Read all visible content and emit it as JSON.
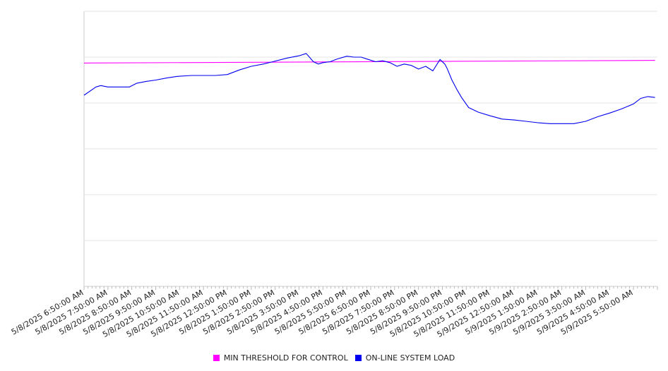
{
  "chart_data": {
    "type": "line",
    "x_tick_labels": [
      "5/8/2025 6:50:00 AM",
      "5/8/2025 7:50:00 AM",
      "5/8/2025 8:50:00 AM",
      "5/8/2025 9:50:00 AM",
      "5/8/2025 10:50:00 AM",
      "5/8/2025 11:50:00 AM",
      "5/8/2025 12:50:00 PM",
      "5/8/2025 1:50:00 PM",
      "5/8/2025 2:50:00 PM",
      "5/8/2025 3:50:00 PM",
      "5/8/2025 4:50:00 PM",
      "5/8/2025 5:50:00 PM",
      "5/8/2025 6:50:00 PM",
      "5/8/2025 7:50:00 PM",
      "5/8/2025 8:50:00 PM",
      "5/8/2025 9:50:00 PM",
      "5/8/2025 10:50:00 PM",
      "5/8/2025 11:50:00 PM",
      "5/9/2025 12:50:00 AM",
      "5/9/2025 1:50:00 AM",
      "5/9/2025 2:50:00 AM",
      "5/9/2025 3:50:00 AM",
      "5/9/2025 4:50:00 AM",
      "5/9/2025 5:50:00 AM"
    ],
    "ylim": [
      0,
      6
    ],
    "y_gridlines": [
      1,
      2,
      3,
      4,
      5
    ],
    "y_tick_labels_visible": false,
    "grid": true,
    "legend_position": "bottom-center",
    "series": [
      {
        "name": "MIN THRESHOLD FOR CONTROL",
        "color": "#ff00ff",
        "x_hours": [
          0,
          23.9
        ],
        "values": [
          4.87,
          4.93
        ]
      },
      {
        "name": "ON-LINE SYSTEM LOAD",
        "color": "#0000ee",
        "x_hours": [
          0,
          0.5,
          0.7,
          1,
          1.5,
          1.9,
          2.2,
          2.6,
          3,
          3.5,
          3.9,
          4.5,
          5,
          5.5,
          6,
          6.5,
          7,
          7.5,
          7.9,
          8.5,
          9,
          9.3,
          9.6,
          9.8,
          10,
          10.3,
          10.6,
          11,
          11.3,
          11.6,
          11.9,
          12.2,
          12.5,
          12.8,
          13.1,
          13.4,
          13.7,
          14,
          14.3,
          14.6,
          14.9,
          15.1,
          15.2,
          15.4,
          15.6,
          15.8,
          16.1,
          16.5,
          17,
          17.5,
          18,
          18.5,
          19,
          19.5,
          20,
          20.5,
          21,
          21.5,
          22,
          22.5,
          23,
          23.3,
          23.6,
          23.9
        ],
        "values": [
          4.17,
          4.35,
          4.38,
          4.35,
          4.35,
          4.35,
          4.43,
          4.47,
          4.5,
          4.55,
          4.58,
          4.6,
          4.6,
          4.6,
          4.62,
          4.72,
          4.8,
          4.85,
          4.9,
          4.98,
          5.03,
          5.08,
          4.9,
          4.85,
          4.88,
          4.9,
          4.96,
          5.02,
          5.0,
          5.0,
          4.95,
          4.9,
          4.92,
          4.88,
          4.8,
          4.85,
          4.82,
          4.74,
          4.8,
          4.7,
          4.95,
          4.85,
          4.75,
          4.5,
          4.3,
          4.12,
          3.9,
          3.8,
          3.72,
          3.65,
          3.63,
          3.6,
          3.57,
          3.55,
          3.55,
          3.55,
          3.6,
          3.7,
          3.78,
          3.87,
          3.98,
          4.1,
          4.14,
          4.12
        ]
      }
    ]
  }
}
